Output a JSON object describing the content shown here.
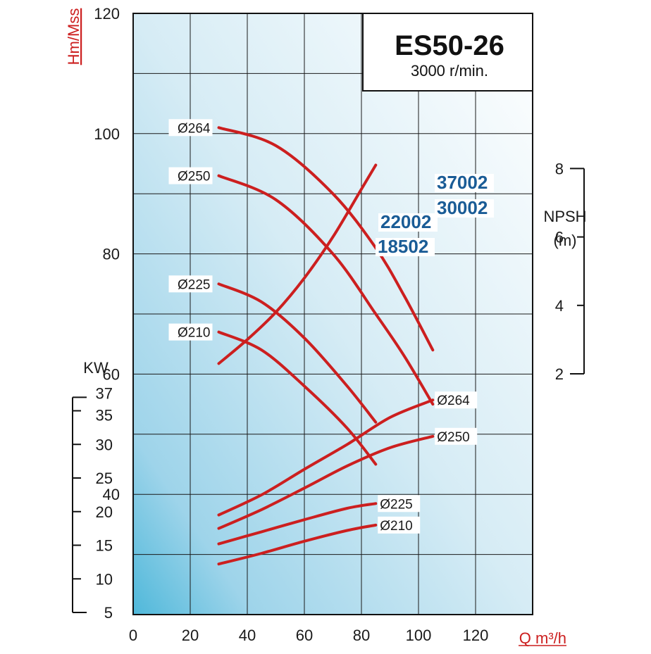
{
  "chart_data": {
    "type": "line",
    "title": "ES50-26",
    "subtitle": "3000 r/min.",
    "xlabel": "Q m³/h",
    "xlim": [
      0,
      140
    ],
    "x_ticks": [
      "0",
      "20",
      "40",
      "60",
      "80",
      "100",
      "120"
    ],
    "grid": true,
    "colors": {
      "curve": "#cc1f1f",
      "model": "#1a5c96",
      "background_light": "#ffffff",
      "background_dark": "#4fb8da"
    },
    "head": {
      "ylabel": "Hm/Mss",
      "ylim": [
        20,
        120
      ],
      "ticks": [
        "40",
        "60",
        "80",
        "100",
        "120"
      ],
      "series": [
        {
          "name": "Ø264",
          "model": "37002",
          "x": [
            30,
            50,
            70,
            85,
            95,
            105
          ],
          "y": [
            101,
            98,
            90,
            81,
            73,
            64
          ]
        },
        {
          "name": "Ø250",
          "model": "30002",
          "x": [
            30,
            50,
            70,
            85,
            95,
            105
          ],
          "y": [
            93,
            89,
            80,
            70,
            63,
            55
          ]
        },
        {
          "name": "Ø225",
          "model": "22002",
          "x": [
            30,
            45,
            60,
            75,
            85
          ],
          "y": [
            75,
            72,
            66,
            58,
            52
          ]
        },
        {
          "name": "Ø210",
          "model": "18502",
          "x": [
            30,
            45,
            60,
            75,
            85
          ],
          "y": [
            67,
            64,
            58,
            51,
            45
          ]
        }
      ]
    },
    "npsh": {
      "ylabel": "NPSH",
      "unit": "(m)",
      "ticks": [
        "2",
        "4",
        "6",
        "8"
      ],
      "series": [
        {
          "name": "NPSH",
          "x": [
            30,
            40,
            50,
            60,
            70,
            80,
            85
          ],
          "y": [
            2.3,
            3.0,
            3.8,
            4.8,
            6.0,
            7.4,
            8.1
          ]
        }
      ]
    },
    "power": {
      "ylabel": "KW",
      "ticks": [
        "5",
        "10",
        "15",
        "20",
        "25",
        "30",
        "35",
        "37"
      ],
      "series": [
        {
          "name": "Ø264",
          "x": [
            30,
            45,
            60,
            75,
            90,
            105
          ],
          "y": [
            19.5,
            22.5,
            26.3,
            30.0,
            34.0,
            36.6
          ]
        },
        {
          "name": "Ø250",
          "x": [
            30,
            45,
            60,
            75,
            90,
            105
          ],
          "y": [
            17.5,
            20.3,
            23.5,
            26.8,
            29.5,
            31.2
          ]
        },
        {
          "name": "Ø225",
          "x": [
            30,
            45,
            60,
            75,
            85
          ],
          "y": [
            15.2,
            17.0,
            18.8,
            20.5,
            21.2
          ]
        },
        {
          "name": "Ø210",
          "x": [
            30,
            45,
            60,
            75,
            85
          ],
          "y": [
            12.2,
            13.8,
            15.6,
            17.2,
            18.0
          ]
        }
      ]
    }
  }
}
